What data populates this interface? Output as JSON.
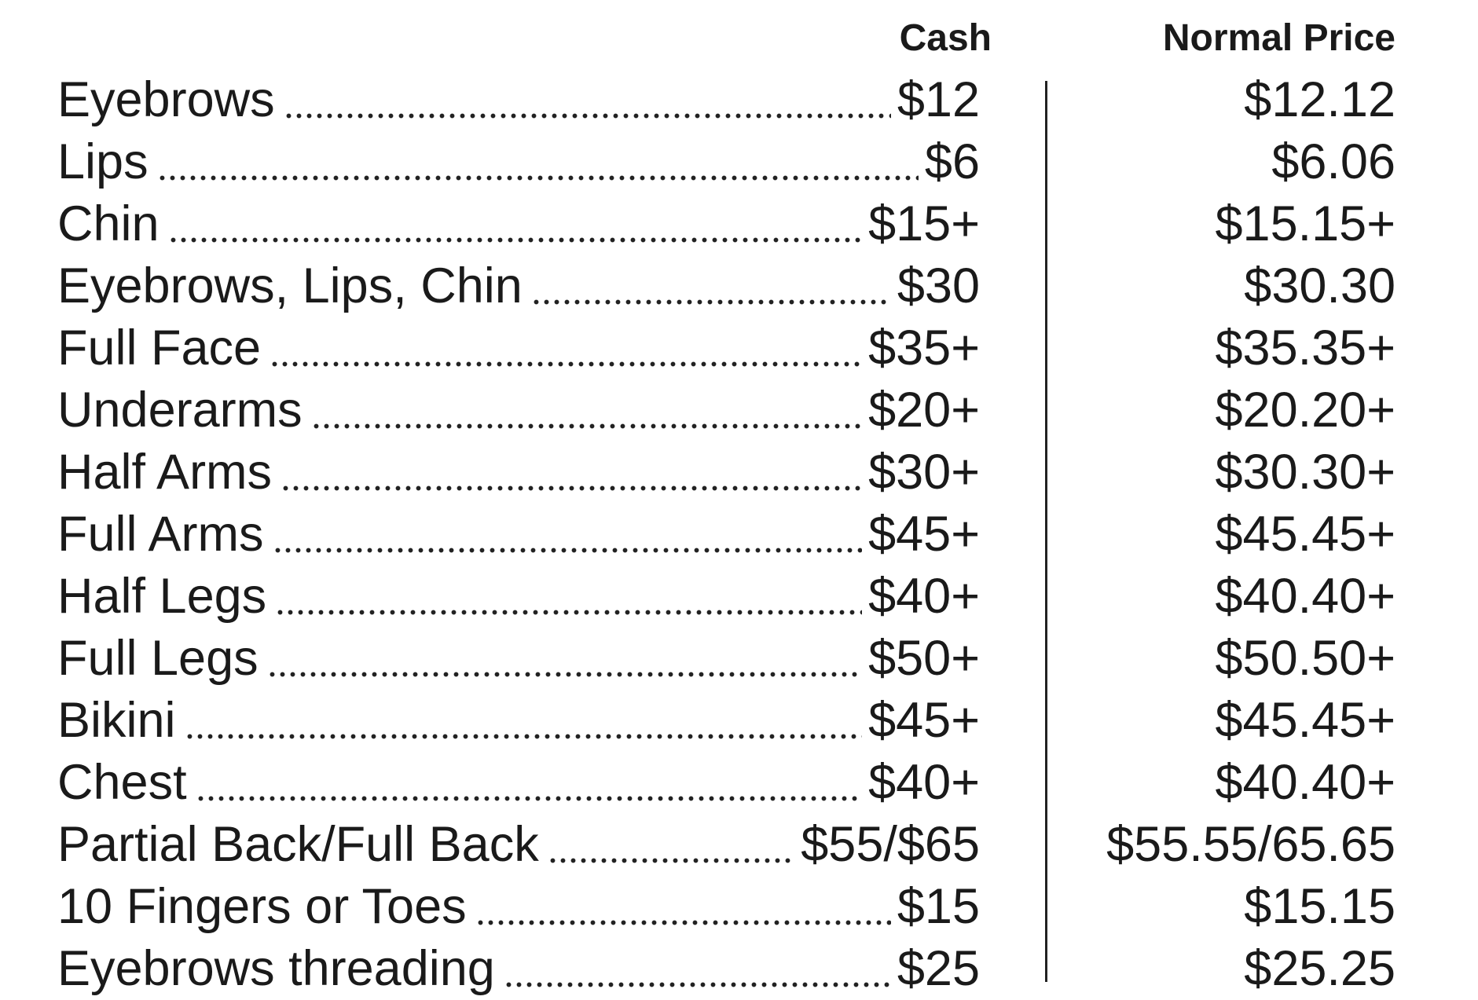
{
  "header": {
    "cash": "Cash",
    "normal": "Normal Price"
  },
  "rows": [
    {
      "service": "Eyebrows",
      "cash": "$12",
      "normal": "$12.12"
    },
    {
      "service": "Lips",
      "cash": "$6",
      "normal": "$6.06"
    },
    {
      "service": "Chin",
      "cash": "$15+",
      "normal": "$15.15+"
    },
    {
      "service": "Eyebrows, Lips, Chin",
      "cash": "$30",
      "normal": "$30.30"
    },
    {
      "service": "Full Face",
      "cash": "$35+",
      "normal": "$35.35+"
    },
    {
      "service": "Underarms",
      "cash": "$20+",
      "normal": "$20.20+"
    },
    {
      "service": "Half Arms",
      "cash": "$30+",
      "normal": "$30.30+"
    },
    {
      "service": "Full Arms",
      "cash": "$45+",
      "normal": "$45.45+"
    },
    {
      "service": "Half Legs",
      "cash": "$40+",
      "normal": "$40.40+"
    },
    {
      "service": "Full Legs",
      "cash": "$50+",
      "normal": "$50.50+"
    },
    {
      "service": "Bikini",
      "cash": "$45+",
      "normal": "$45.45+"
    },
    {
      "service": "Chest",
      "cash": "$40+",
      "normal": "$40.40+"
    },
    {
      "service": "Partial Back/Full Back",
      "cash": "$55/$65",
      "normal": "$55.55/65.65"
    },
    {
      "service": "10 Fingers or Toes",
      "cash": "$15",
      "normal": "$15.15"
    },
    {
      "service": "Eyebrows threading",
      "cash": "$25",
      "normal": "$25.25"
    }
  ]
}
